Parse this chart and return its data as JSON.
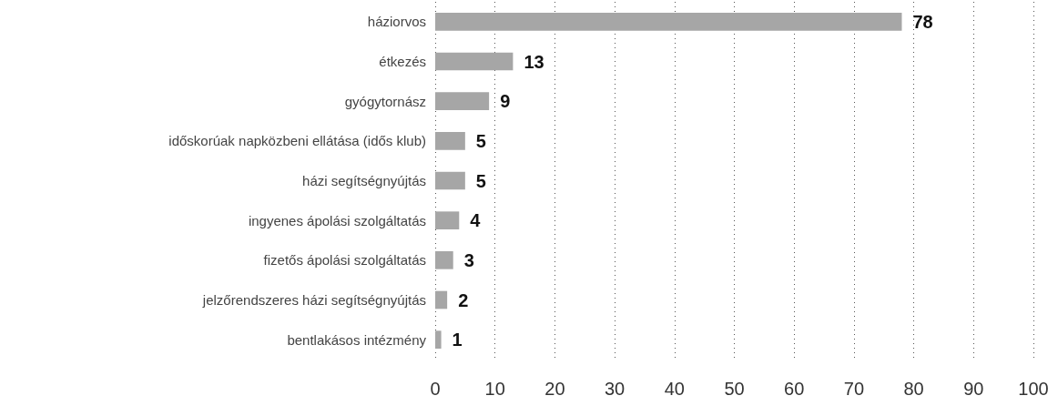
{
  "chart_data": {
    "type": "bar",
    "orientation": "horizontal",
    "categories": [
      "háziorvos",
      "étkezés",
      "gyógytornász",
      "időskorúak napközbeni ellátása (idős klub)",
      "házi segítségnyújtás",
      "ingyenes ápolási szolgáltatás",
      "fizetős ápolási szolgáltatás",
      "jelzőrendszeres házi segítségnyújtás",
      "bentlakásos intézmény"
    ],
    "values": [
      78,
      13,
      9,
      5,
      5,
      4,
      3,
      2,
      1
    ],
    "color": "#a6a6a6",
    "data_labels": true,
    "xlim": [
      0,
      100
    ],
    "xticks": [
      0,
      10,
      20,
      30,
      40,
      50,
      60,
      70,
      80,
      90,
      100
    ],
    "grid": "x"
  }
}
